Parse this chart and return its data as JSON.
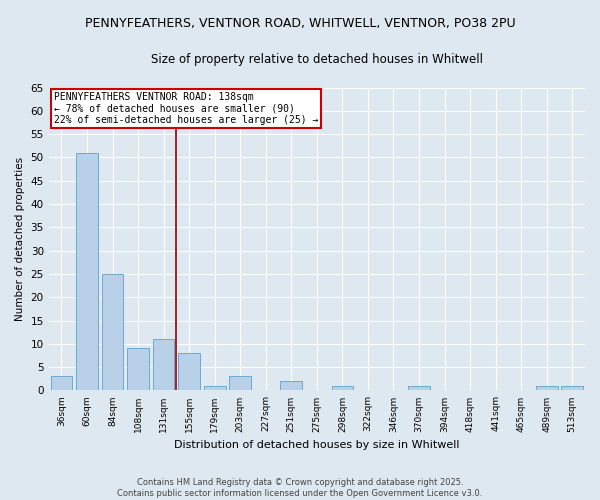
{
  "title_line1": "PENNYFEATHERS, VENTNOR ROAD, WHITWELL, VENTNOR, PO38 2PU",
  "title_line2": "Size of property relative to detached houses in Whitwell",
  "xlabel": "Distribution of detached houses by size in Whitwell",
  "ylabel": "Number of detached properties",
  "categories": [
    "36sqm",
    "60sqm",
    "84sqm",
    "108sqm",
    "131sqm",
    "155sqm",
    "179sqm",
    "203sqm",
    "227sqm",
    "251sqm",
    "275sqm",
    "298sqm",
    "322sqm",
    "346sqm",
    "370sqm",
    "394sqm",
    "418sqm",
    "441sqm",
    "465sqm",
    "489sqm",
    "513sqm"
  ],
  "values": [
    3,
    51,
    25,
    9,
    11,
    8,
    1,
    3,
    0,
    2,
    0,
    1,
    0,
    0,
    1,
    0,
    0,
    0,
    0,
    1,
    1
  ],
  "bar_color": "#b8d0e8",
  "bar_edge_color": "#6aaad4",
  "background_color": "#dde8f0",
  "grid_color": "#ffffff",
  "red_line_color": "#990000",
  "annotation_text": "PENNYFEATHERS VENTNOR ROAD: 138sqm\n← 78% of detached houses are smaller (90)\n22% of semi-detached houses are larger (25) →",
  "annotation_box_color": "#ffffff",
  "annotation_border_color": "#cc0000",
  "ylim": [
    0,
    65
  ],
  "yticks": [
    0,
    5,
    10,
    15,
    20,
    25,
    30,
    35,
    40,
    45,
    50,
    55,
    60,
    65
  ],
  "footer": "Contains HM Land Registry data © Crown copyright and database right 2025.\nContains public sector information licensed under the Open Government Licence v3.0.",
  "title_fontsize": 9,
  "subtitle_fontsize": 8.5
}
